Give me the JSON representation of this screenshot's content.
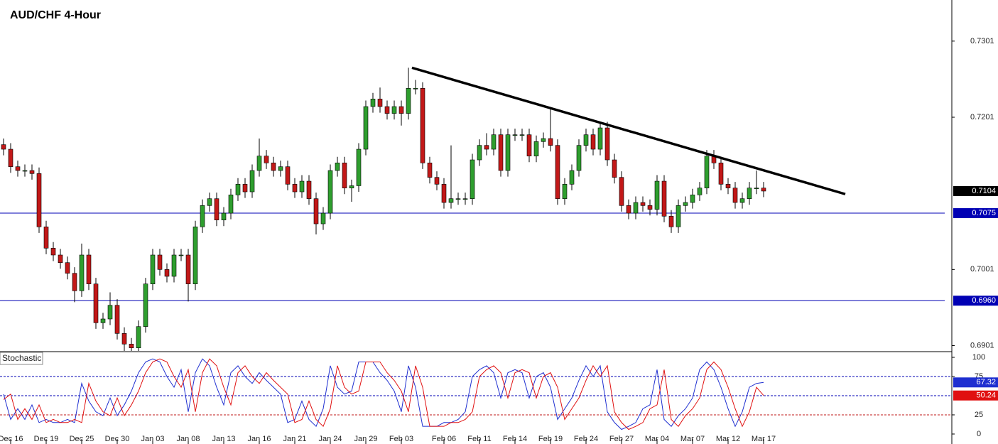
{
  "chart_data": [
    {
      "type": "candlestick",
      "title": "AUD/CHF 4-Hour",
      "categories": [
        null,
        "Dec 16",
        null,
        null,
        null,
        null,
        "Dec 19",
        null,
        null,
        null,
        null,
        "Dec 25",
        null,
        null,
        null,
        null,
        "Dec 30",
        null,
        null,
        null,
        null,
        "Jan 03",
        null,
        null,
        null,
        null,
        "Jan 08",
        null,
        null,
        null,
        null,
        "Jan 13",
        null,
        null,
        null,
        null,
        "Jan 16",
        null,
        null,
        null,
        null,
        "Jan 21",
        null,
        null,
        null,
        null,
        "Jan 24",
        null,
        null,
        null,
        null,
        "Jan 29",
        null,
        null,
        null,
        null,
        "Feb 03",
        null,
        null,
        null,
        null,
        null,
        "Feb 06",
        null,
        null,
        null,
        null,
        "Feb 11",
        null,
        null,
        null,
        null,
        "Feb 14",
        null,
        null,
        null,
        null,
        "Feb 19",
        null,
        null,
        null,
        null,
        "Feb 24",
        null,
        null,
        null,
        null,
        "Feb 27",
        null,
        null,
        null,
        null,
        "Mar 04",
        null,
        null,
        null,
        null,
        "Mar 07",
        null,
        null,
        null,
        null,
        "Mar 12",
        null,
        null,
        null,
        null,
        "Mar 17"
      ],
      "ohlc": [
        [
          0.7165,
          0.7173,
          0.7151,
          0.7159
        ],
        [
          0.7159,
          0.7167,
          0.7128,
          0.7136
        ],
        [
          0.7136,
          0.7144,
          0.7123,
          0.7131
        ],
        [
          0.7131,
          0.7139,
          0.7123,
          0.7131
        ],
        [
          0.7131,
          0.7139,
          0.7119,
          0.7127
        ],
        [
          0.7127,
          0.7135,
          0.7049,
          0.7057
        ],
        [
          0.7057,
          0.7065,
          0.7021,
          0.7029
        ],
        [
          0.7029,
          0.7037,
          0.7012,
          0.702
        ],
        [
          0.702,
          0.7028,
          0.7002,
          0.701
        ],
        [
          0.701,
          0.7018,
          0.6988,
          0.6996
        ],
        [
          0.6996,
          0.7004,
          0.6958,
          0.6973
        ],
        [
          0.6973,
          0.7035,
          0.6965,
          0.702
        ],
        [
          0.702,
          0.7028,
          0.6974,
          0.6982
        ],
        [
          0.6982,
          0.699,
          0.6923,
          0.6931
        ],
        [
          0.6931,
          0.6944,
          0.6923,
          0.6936
        ],
        [
          0.6936,
          0.6971,
          0.6928,
          0.6954
        ],
        [
          0.6954,
          0.6962,
          0.6909,
          0.6917
        ],
        [
          0.6917,
          0.6925,
          0.6894,
          0.6903
        ],
        [
          0.6903,
          0.6911,
          0.6894,
          0.6898
        ],
        [
          0.6898,
          0.6934,
          0.6894,
          0.6926
        ],
        [
          0.6926,
          0.699,
          0.6918,
          0.6982
        ],
        [
          0.6982,
          0.7028,
          0.6974,
          0.702
        ],
        [
          0.702,
          0.7028,
          0.6993,
          0.7001
        ],
        [
          0.7001,
          0.7009,
          0.6984,
          0.6992
        ],
        [
          0.6992,
          0.7028,
          0.6984,
          0.702
        ],
        [
          0.702,
          0.7028,
          0.7012,
          0.702
        ],
        [
          0.702,
          0.7028,
          0.6959,
          0.6982
        ],
        [
          0.6982,
          0.7065,
          0.6974,
          0.7057
        ],
        [
          0.7057,
          0.7093,
          0.7049,
          0.7085
        ],
        [
          0.7085,
          0.7102,
          0.7077,
          0.7094
        ],
        [
          0.7094,
          0.7102,
          0.7058,
          0.7066
        ],
        [
          0.7066,
          0.7083,
          0.7058,
          0.7075
        ],
        [
          0.7075,
          0.7107,
          0.7067,
          0.7099
        ],
        [
          0.7099,
          0.7121,
          0.7091,
          0.7113
        ],
        [
          0.7113,
          0.7121,
          0.7095,
          0.7103
        ],
        [
          0.7103,
          0.7139,
          0.7095,
          0.7131
        ],
        [
          0.7131,
          0.7173,
          0.7123,
          0.715
        ],
        [
          0.715,
          0.7158,
          0.7133,
          0.7141
        ],
        [
          0.7141,
          0.7149,
          0.7123,
          0.7131
        ],
        [
          0.7131,
          0.7144,
          0.7123,
          0.7136
        ],
        [
          0.7136,
          0.7144,
          0.7105,
          0.7113
        ],
        [
          0.7113,
          0.7121,
          0.7095,
          0.7103
        ],
        [
          0.7103,
          0.7125,
          0.7095,
          0.7117
        ],
        [
          0.7117,
          0.7125,
          0.7086,
          0.7094
        ],
        [
          0.7094,
          0.7102,
          0.7047,
          0.7061
        ],
        [
          0.7061,
          0.7083,
          0.7053,
          0.7075
        ],
        [
          0.7075,
          0.7139,
          0.7067,
          0.7131
        ],
        [
          0.7131,
          0.7149,
          0.7123,
          0.7141
        ],
        [
          0.7141,
          0.7149,
          0.71,
          0.7108
        ],
        [
          0.7108,
          0.7119,
          0.709,
          0.7111
        ],
        [
          0.7111,
          0.7167,
          0.7103,
          0.7159
        ],
        [
          0.7159,
          0.7223,
          0.7151,
          0.7215
        ],
        [
          0.7215,
          0.7233,
          0.7207,
          0.7225
        ],
        [
          0.7225,
          0.724,
          0.7207,
          0.7215
        ],
        [
          0.7215,
          0.7223,
          0.7198,
          0.7206
        ],
        [
          0.7206,
          0.7223,
          0.7198,
          0.7215
        ],
        [
          0.7215,
          0.7223,
          0.719,
          0.7206
        ],
        [
          0.7206,
          0.7266,
          0.7198,
          0.7239
        ],
        [
          0.7239,
          0.725,
          0.7231,
          0.7239
        ],
        [
          0.7239,
          0.7247,
          0.7133,
          0.7141
        ],
        [
          0.7141,
          0.7149,
          0.7114,
          0.7122
        ],
        [
          0.7122,
          0.713,
          0.7105,
          0.7113
        ],
        [
          0.7113,
          0.7121,
          0.7081,
          0.7089
        ],
        [
          0.7089,
          0.7164,
          0.7081,
          0.7094
        ],
        [
          0.7094,
          0.7102,
          0.7086,
          0.7094
        ],
        [
          0.7094,
          0.7102,
          0.7086,
          0.7094
        ],
        [
          0.7094,
          0.7153,
          0.7086,
          0.7145
        ],
        [
          0.7145,
          0.7172,
          0.7137,
          0.7164
        ],
        [
          0.7164,
          0.718,
          0.7151,
          0.7159
        ],
        [
          0.7159,
          0.7186,
          0.7151,
          0.7178
        ],
        [
          0.7178,
          0.7186,
          0.7123,
          0.7131
        ],
        [
          0.7131,
          0.7186,
          0.7123,
          0.7178
        ],
        [
          0.7178,
          0.7186,
          0.717,
          0.7178
        ],
        [
          0.7178,
          0.7186,
          0.717,
          0.7178
        ],
        [
          0.7178,
          0.7186,
          0.7142,
          0.715
        ],
        [
          0.715,
          0.7177,
          0.7142,
          0.7169
        ],
        [
          0.7169,
          0.7181,
          0.7161,
          0.7173
        ],
        [
          0.7173,
          0.7213,
          0.7156,
          0.7164
        ],
        [
          0.7164,
          0.7172,
          0.7086,
          0.7094
        ],
        [
          0.7094,
          0.7121,
          0.7086,
          0.7113
        ],
        [
          0.7113,
          0.7139,
          0.7105,
          0.7131
        ],
        [
          0.7131,
          0.7172,
          0.7123,
          0.7164
        ],
        [
          0.7164,
          0.7186,
          0.7156,
          0.7178
        ],
        [
          0.7178,
          0.7186,
          0.7151,
          0.7159
        ],
        [
          0.7159,
          0.7195,
          0.7151,
          0.7187
        ],
        [
          0.7187,
          0.7195,
          0.7137,
          0.7145
        ],
        [
          0.7145,
          0.7153,
          0.7114,
          0.7122
        ],
        [
          0.7122,
          0.713,
          0.7077,
          0.7085
        ],
        [
          0.7085,
          0.7093,
          0.7067,
          0.7075
        ],
        [
          0.7075,
          0.7097,
          0.7067,
          0.7089
        ],
        [
          0.7089,
          0.7097,
          0.7077,
          0.7085
        ],
        [
          0.7085,
          0.7093,
          0.7072,
          0.708
        ],
        [
          0.708,
          0.7125,
          0.7072,
          0.7117
        ],
        [
          0.7117,
          0.7125,
          0.7063,
          0.7071
        ],
        [
          0.7071,
          0.7079,
          0.7049,
          0.7057
        ],
        [
          0.7057,
          0.7093,
          0.7049,
          0.7085
        ],
        [
          0.7085,
          0.7097,
          0.7077,
          0.7089
        ],
        [
          0.7089,
          0.7107,
          0.7081,
          0.7099
        ],
        [
          0.7099,
          0.7116,
          0.7091,
          0.7108
        ],
        [
          0.7108,
          0.7158,
          0.71,
          0.715
        ],
        [
          0.715,
          0.7158,
          0.7133,
          0.7141
        ],
        [
          0.7141,
          0.7149,
          0.7105,
          0.7113
        ],
        [
          0.7113,
          0.7121,
          0.71,
          0.7108
        ],
        [
          0.7108,
          0.7116,
          0.7081,
          0.7089
        ],
        [
          0.7089,
          0.7102,
          0.7081,
          0.7094
        ],
        [
          0.7094,
          0.7116,
          0.7086,
          0.7108
        ],
        [
          0.7108,
          0.7131,
          0.71,
          0.7108
        ],
        [
          0.7108,
          0.7116,
          0.7096,
          0.7104
        ]
      ],
      "up_color": "#2e9e2e",
      "down_color": "#c21818",
      "xlim": [
        -0.5,
        132.5
      ],
      "ylim": [
        0.6894,
        0.7355
      ],
      "yticks": [
        0.6901,
        0.7001,
        0.7201,
        0.7301
      ],
      "last_price": 0.7104,
      "last_price_color": "#000000",
      "levels": [
        0.7075,
        {
          "value": 0.696,
          "label": "0.6960"
        }
      ],
      "level_color": "#0000b4",
      "trendline": {
        "x": [
          57.5,
          118.5
        ],
        "y": [
          0.7266,
          0.71
        ],
        "color": "#000000"
      }
    },
    {
      "type": "line",
      "title": "Stochastic",
      "ylim": [
        -13,
        106.5
      ],
      "yticks": [
        0,
        25,
        75,
        100
      ],
      "levels": [
        {
          "value": 75,
          "color": "#0000b4"
        },
        {
          "value": 50,
          "color": "#0000b4"
        },
        {
          "value": 25,
          "color": "#c21818"
        }
      ],
      "series": [
        {
          "color": "#1f2fd0",
          "values": [
            52,
            19,
            33,
            19,
            38,
            15,
            19,
            15,
            15,
            19,
            15,
            66,
            43,
            29,
            24,
            47,
            24,
            38,
            56,
            80,
            94,
            98,
            94,
            75,
            61,
            84,
            29,
            80,
            98,
            89,
            61,
            38,
            80,
            89,
            75,
            66,
            80,
            70,
            61,
            52,
            15,
            19,
            43,
            19,
            10,
            33,
            89,
            61,
            52,
            56,
            94,
            94,
            94,
            80,
            70,
            56,
            29,
            89,
            61,
            10,
            10,
            10,
            15,
            15,
            19,
            29,
            75,
            84,
            89,
            80,
            47,
            80,
            84,
            80,
            47,
            75,
            80,
            61,
            19,
            33,
            47,
            70,
            89,
            75,
            89,
            29,
            15,
            6,
            10,
            15,
            33,
            38,
            84,
            19,
            10,
            24,
            33,
            47,
            84,
            94,
            84,
            61,
            33,
            10,
            29,
            61,
            66,
            67.32
          ]
        },
        {
          "color": "#e01010",
          "values": [
            45,
            52,
            19,
            33,
            19,
            38,
            15,
            19,
            15,
            15,
            19,
            15,
            66,
            43,
            29,
            24,
            47,
            24,
            38,
            56,
            80,
            94,
            98,
            94,
            75,
            61,
            84,
            29,
            80,
            98,
            89,
            61,
            38,
            80,
            89,
            75,
            66,
            80,
            70,
            61,
            52,
            15,
            19,
            43,
            19,
            10,
            33,
            89,
            61,
            52,
            56,
            94,
            94,
            94,
            80,
            70,
            56,
            29,
            89,
            61,
            10,
            10,
            10,
            15,
            15,
            19,
            29,
            75,
            84,
            89,
            80,
            47,
            80,
            84,
            80,
            47,
            75,
            80,
            61,
            19,
            33,
            47,
            70,
            89,
            75,
            89,
            29,
            15,
            6,
            10,
            15,
            33,
            38,
            84,
            19,
            10,
            24,
            33,
            47,
            84,
            94,
            84,
            61,
            33,
            10,
            29,
            61,
            50.24
          ]
        }
      ]
    }
  ]
}
